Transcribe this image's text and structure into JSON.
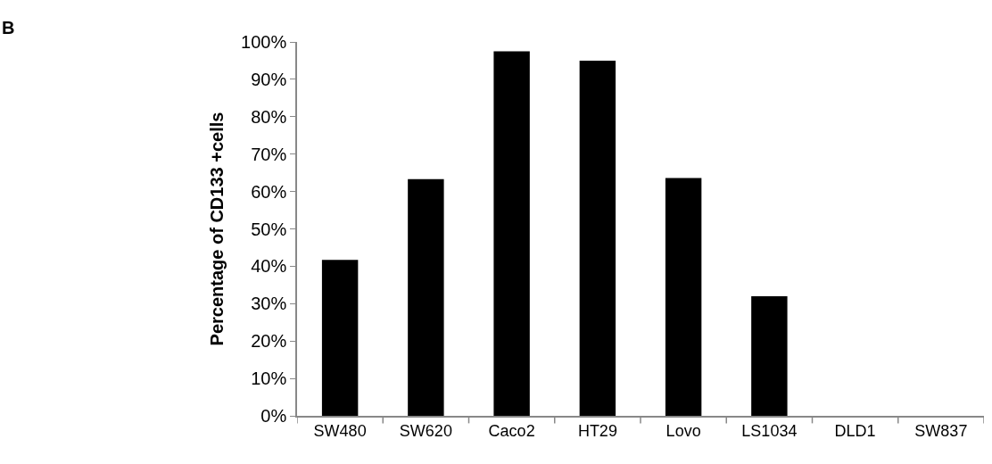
{
  "chart_data": {
    "type": "bar",
    "categories": [
      "SW480",
      "SW620",
      "Caco2",
      "HT29",
      "Lovo",
      "LS1034",
      "DLD1",
      "SW837"
    ],
    "values": [
      41.7,
      63.3,
      97.5,
      95.0,
      63.6,
      32.0,
      0,
      0
    ],
    "color": "#000000",
    "ylabel": "Percentage of CD133 +cells",
    "ylim": [
      0,
      100
    ],
    "yticks": [
      {
        "value": 0,
        "label": "0%"
      },
      {
        "value": 10,
        "label": "10%"
      },
      {
        "value": 20,
        "label": "20%"
      },
      {
        "value": 30,
        "label": "30%"
      },
      {
        "value": 40,
        "label": "40%"
      },
      {
        "value": 50,
        "label": "50%"
      },
      {
        "value": 60,
        "label": "60%"
      },
      {
        "value": 70,
        "label": "70%"
      },
      {
        "value": 80,
        "label": "80%"
      },
      {
        "value": 90,
        "label": "90%"
      },
      {
        "value": 100,
        "label": "100%"
      }
    ],
    "grid": false,
    "annotations": [
      "B"
    ]
  }
}
